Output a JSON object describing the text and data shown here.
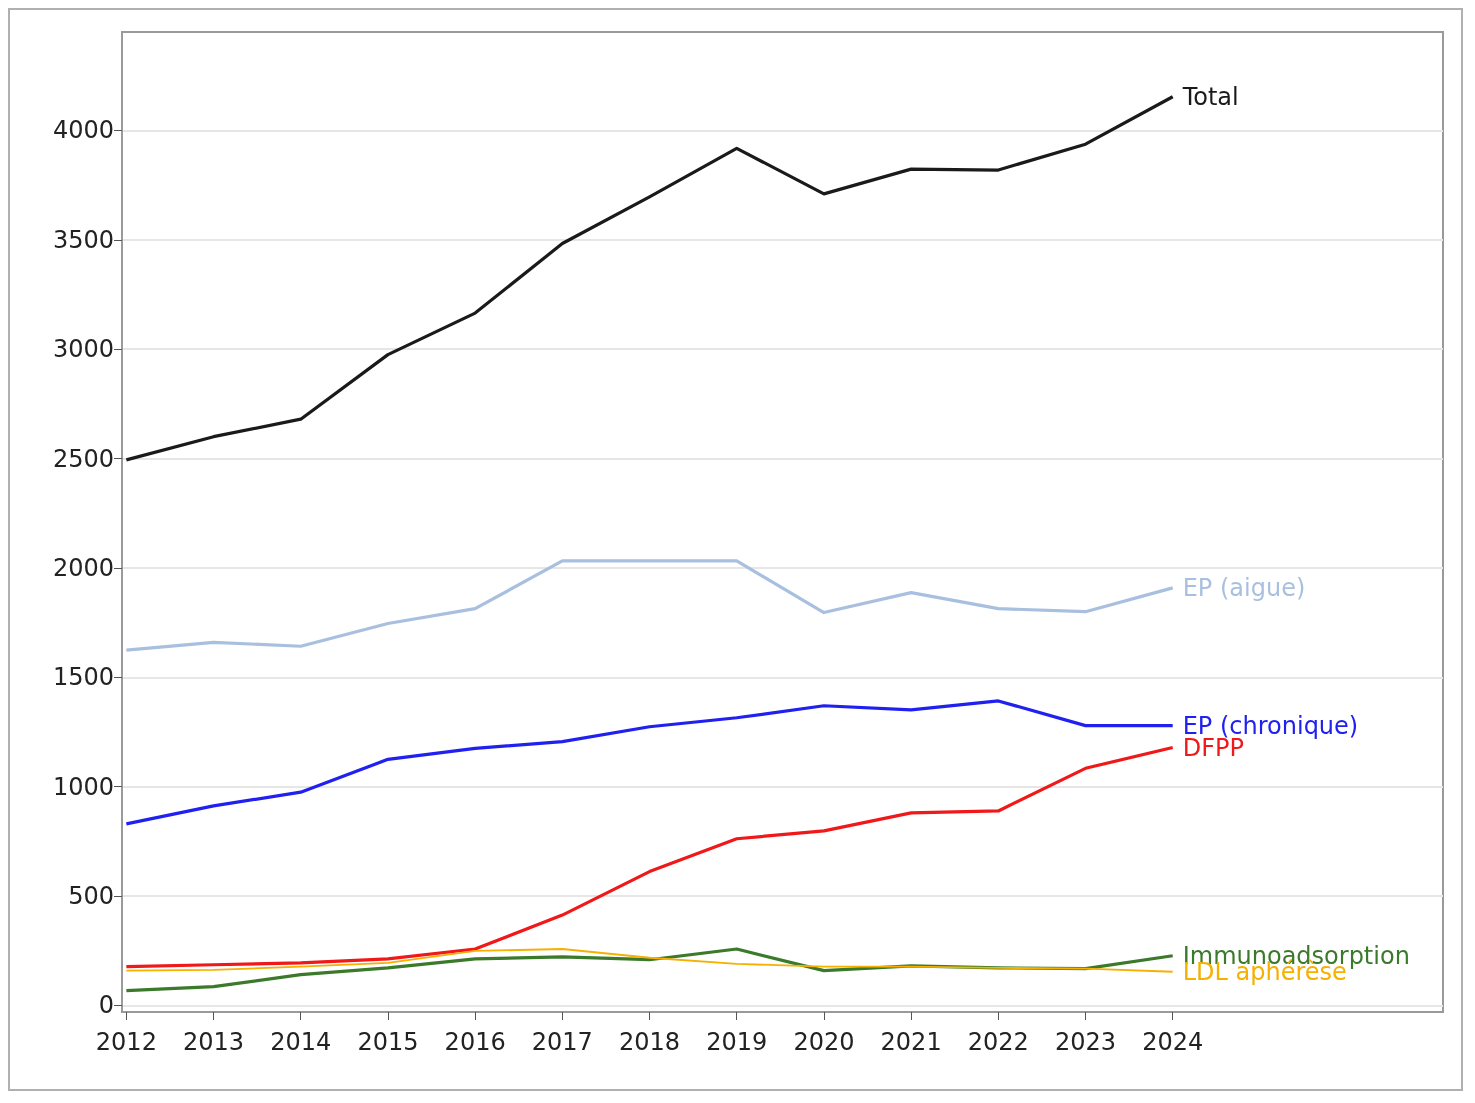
{
  "chart_data": {
    "type": "line",
    "x": [
      2012,
      2013,
      2014,
      2015,
      2016,
      2017,
      2018,
      2019,
      2020,
      2021,
      2022,
      2023,
      2024
    ],
    "series": [
      {
        "name": "Total",
        "color": "#1a1a1a",
        "values": [
          2494,
          2600,
          2680,
          2975,
          3165,
          3483,
          3696,
          3918,
          3710,
          3823,
          3819,
          3937,
          4154
        ]
      },
      {
        "name": "EP (aigue)",
        "color": "#a9bfdf",
        "values": [
          1624,
          1660,
          1642,
          1746,
          1814,
          2032,
          2032,
          2032,
          1796,
          1887,
          1814,
          1800,
          1909
        ]
      },
      {
        "name": "EP (chronique)",
        "color": "#2020f0",
        "values": [
          830,
          912,
          975,
          1125,
          1175,
          1206,
          1274,
          1315,
          1370,
          1351,
          1392,
          1279,
          1279
        ]
      },
      {
        "name": "DFPP",
        "color": "#f01818",
        "values": [
          177,
          186,
          195,
          213,
          258,
          413,
          612,
          762,
          798,
          880,
          889,
          1084,
          1179
        ]
      },
      {
        "name": "Immunoadsorption",
        "color": "#3a7a2a",
        "values": [
          68,
          86,
          141,
          172,
          213,
          222,
          209,
          258,
          159,
          181,
          172,
          168,
          227
        ]
      },
      {
        "name": "LDL aphérèse",
        "color": "#f5b000",
        "values": [
          159,
          163,
          177,
          195,
          249,
          258,
          218,
          190,
          177,
          177,
          172,
          168,
          154
        ]
      }
    ],
    "xlim": [
      2011.95,
      2027.1
    ],
    "xticks": [
      2012,
      2013,
      2014,
      2015,
      2016,
      2017,
      2018,
      2019,
      2020,
      2021,
      2022,
      2023,
      2024
    ],
    "ylim": [
      -30,
      4450
    ],
    "yticks": [
      0,
      500,
      1000,
      1500,
      2000,
      2500,
      3000,
      3500,
      4000
    ],
    "grid": "y",
    "legend": false,
    "marker": "none",
    "line_style": "solid"
  }
}
